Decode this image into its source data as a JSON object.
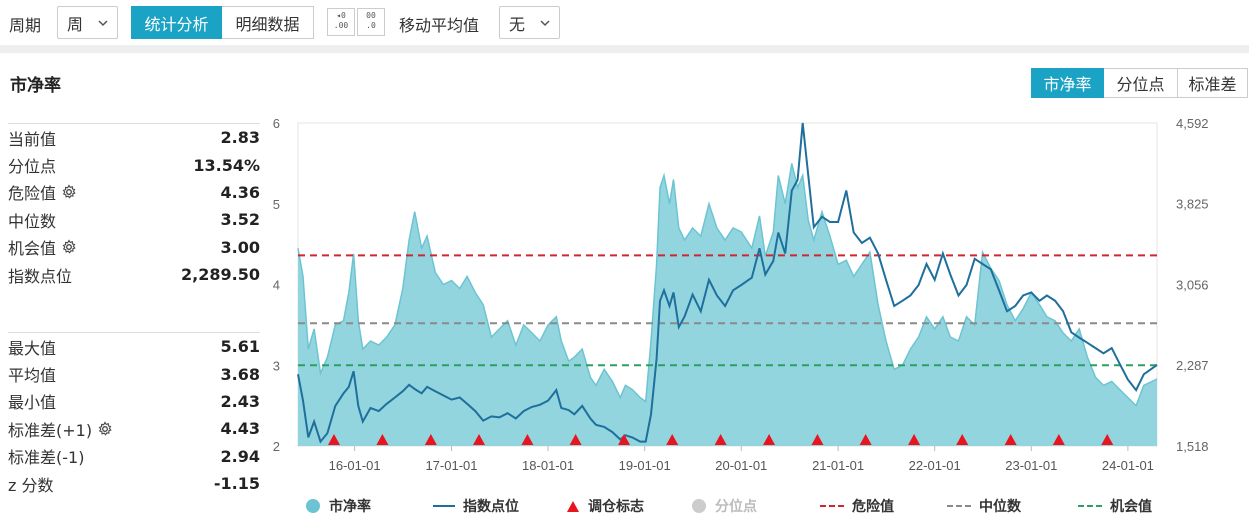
{
  "toolbar": {
    "period_label": "周期",
    "period_value": "周",
    "tab_stats": "统计分析",
    "tab_detail": "明细数据",
    "ma_label": "移动平均值",
    "ma_value": "无",
    "decimal_inc": ".00",
    "decimal_dec": ".0"
  },
  "section": {
    "title": "市净率",
    "view_tabs": [
      "市净率",
      "分位点",
      "标准差"
    ]
  },
  "stats_top": [
    {
      "label": "当前值",
      "value": "2.83",
      "gear": false
    },
    {
      "label": "分位点",
      "value": "13.54%",
      "gear": false
    },
    {
      "label": "危险值",
      "value": "4.36",
      "gear": true
    },
    {
      "label": "中位数",
      "value": "3.52",
      "gear": false
    },
    {
      "label": "机会值",
      "value": "3.00",
      "gear": true
    },
    {
      "label": "指数点位",
      "value": "2,289.50",
      "gear": false
    }
  ],
  "stats_bottom": [
    {
      "label": "最大值",
      "value": "5.61",
      "gear": false
    },
    {
      "label": "平均值",
      "value": "3.68",
      "gear": false
    },
    {
      "label": "最小值",
      "value": "2.43",
      "gear": false
    },
    {
      "label": "标准差(+1)",
      "value": "4.43",
      "gear": true
    },
    {
      "label": "标准差(-1)",
      "value": "2.94",
      "gear": false
    },
    {
      "label": "z 分数",
      "value": "-1.15",
      "gear": false
    }
  ],
  "colors": {
    "accent": "#1ba3c6",
    "area_fill": "#93d5df",
    "area_stroke": "#6cc4d2",
    "index_line": "#1f6f9c",
    "danger": "#d0262d",
    "median": "#8a8a8a",
    "opportunity": "#2aa061",
    "marker": "#e8141e"
  },
  "legend": [
    {
      "label": "市净率",
      "type": "circle",
      "color": "#6cc4d2",
      "active": true
    },
    {
      "label": "指数点位",
      "type": "line",
      "color": "#1f6f9c",
      "active": true
    },
    {
      "label": "调仓标志",
      "type": "triangle",
      "color": "#e8141e",
      "active": true
    },
    {
      "label": "分位点",
      "type": "circle",
      "color": "#cccccc",
      "active": false
    },
    {
      "label": "危险值",
      "type": "dash",
      "color": "#d0262d",
      "active": true
    },
    {
      "label": "中位数",
      "type": "dash",
      "color": "#8a8a8a",
      "active": true
    },
    {
      "label": "机会值",
      "type": "dash",
      "color": "#2aa061",
      "active": true
    }
  ],
  "chart_data": {
    "type": "area",
    "x_range": [
      "2015-06-01",
      "2024-04-20"
    ],
    "x_tick_labels": [
      "16-01-01",
      "17-01-01",
      "18-01-01",
      "19-01-01",
      "20-01-01",
      "21-01-01",
      "22-01-01",
      "23-01-01",
      "24-01-01"
    ],
    "x_tick_dates": [
      "2016-01-01",
      "2017-01-01",
      "2018-01-01",
      "2019-01-01",
      "2020-01-01",
      "2021-01-01",
      "2022-01-01",
      "2023-01-01",
      "2024-01-01"
    ],
    "y_left": {
      "ticks": [
        "2",
        "3",
        "4",
        "5",
        "6"
      ],
      "ylim": [
        2,
        6
      ]
    },
    "y_right": {
      "ticks": [
        "1,518",
        "2,287",
        "3,056",
        "3,825",
        "4,592"
      ],
      "ylim": [
        1518,
        4592
      ]
    },
    "reference_lines": [
      {
        "name": "危险值",
        "value": 4.36
      },
      {
        "name": "中位数",
        "value": 3.52
      },
      {
        "name": "机会值",
        "value": 3.0
      }
    ],
    "series": [
      {
        "name": "市净率",
        "axis": "left",
        "type": "area",
        "points": [
          [
            "2015-06-01",
            4.45
          ],
          [
            "2015-06-20",
            4.1
          ],
          [
            "2015-07-10",
            3.2
          ],
          [
            "2015-08-01",
            3.45
          ],
          [
            "2015-08-25",
            2.9
          ],
          [
            "2015-09-20",
            3.1
          ],
          [
            "2015-10-20",
            3.5
          ],
          [
            "2015-11-20",
            3.55
          ],
          [
            "2015-12-10",
            3.9
          ],
          [
            "2015-12-28",
            4.38
          ],
          [
            "2016-01-15",
            3.55
          ],
          [
            "2016-02-01",
            3.2
          ],
          [
            "2016-03-01",
            3.3
          ],
          [
            "2016-04-01",
            3.25
          ],
          [
            "2016-05-01",
            3.35
          ],
          [
            "2016-06-01",
            3.5
          ],
          [
            "2016-07-01",
            3.95
          ],
          [
            "2016-07-25",
            4.55
          ],
          [
            "2016-08-15",
            4.9
          ],
          [
            "2016-09-10",
            4.45
          ],
          [
            "2016-10-01",
            4.6
          ],
          [
            "2016-11-01",
            4.15
          ],
          [
            "2016-12-01",
            4.0
          ],
          [
            "2017-01-01",
            4.05
          ],
          [
            "2017-02-01",
            3.95
          ],
          [
            "2017-03-01",
            4.1
          ],
          [
            "2017-04-01",
            3.9
          ],
          [
            "2017-05-01",
            3.75
          ],
          [
            "2017-06-01",
            3.35
          ],
          [
            "2017-07-01",
            3.45
          ],
          [
            "2017-08-01",
            3.55
          ],
          [
            "2017-09-01",
            3.25
          ],
          [
            "2017-10-01",
            3.5
          ],
          [
            "2017-11-01",
            3.4
          ],
          [
            "2017-12-01",
            3.3
          ],
          [
            "2018-01-01",
            3.5
          ],
          [
            "2018-02-01",
            3.6
          ],
          [
            "2018-02-20",
            3.3
          ],
          [
            "2018-03-20",
            3.05
          ],
          [
            "2018-04-10",
            3.1
          ],
          [
            "2018-05-10",
            3.2
          ],
          [
            "2018-06-10",
            2.85
          ],
          [
            "2018-07-01",
            2.75
          ],
          [
            "2018-08-01",
            2.95
          ],
          [
            "2018-09-01",
            2.8
          ],
          [
            "2018-10-01",
            2.6
          ],
          [
            "2018-10-20",
            2.75
          ],
          [
            "2018-11-15",
            2.7
          ],
          [
            "2018-12-15",
            2.6
          ],
          [
            "2019-01-05",
            2.55
          ],
          [
            "2019-01-25",
            3.3
          ],
          [
            "2019-02-15",
            4.25
          ],
          [
            "2019-02-28",
            5.2
          ],
          [
            "2019-03-15",
            5.35
          ],
          [
            "2019-04-05",
            5.0
          ],
          [
            "2019-04-20",
            5.3
          ],
          [
            "2019-05-10",
            4.7
          ],
          [
            "2019-06-01",
            4.55
          ],
          [
            "2019-07-01",
            4.7
          ],
          [
            "2019-08-01",
            4.6
          ],
          [
            "2019-09-01",
            5.0
          ],
          [
            "2019-10-01",
            4.7
          ],
          [
            "2019-11-01",
            4.55
          ],
          [
            "2019-12-01",
            4.7
          ],
          [
            "2020-01-01",
            4.65
          ],
          [
            "2020-02-10",
            4.45
          ],
          [
            "2020-03-10",
            4.85
          ],
          [
            "2020-04-01",
            4.35
          ],
          [
            "2020-05-01",
            4.65
          ],
          [
            "2020-05-20",
            5.35
          ],
          [
            "2020-06-15",
            5.0
          ],
          [
            "2020-07-10",
            5.5
          ],
          [
            "2020-08-01",
            5.2
          ],
          [
            "2020-08-20",
            5.35
          ],
          [
            "2020-09-10",
            4.8
          ],
          [
            "2020-10-01",
            4.55
          ],
          [
            "2020-11-01",
            4.9
          ],
          [
            "2020-12-01",
            4.6
          ],
          [
            "2021-01-01",
            4.25
          ],
          [
            "2021-02-01",
            4.3
          ],
          [
            "2021-03-01",
            4.1
          ],
          [
            "2021-04-01",
            4.25
          ],
          [
            "2021-05-01",
            4.4
          ],
          [
            "2021-06-01",
            3.75
          ],
          [
            "2021-07-01",
            3.3
          ],
          [
            "2021-08-01",
            2.95
          ],
          [
            "2021-09-01",
            3.0
          ],
          [
            "2021-10-01",
            3.2
          ],
          [
            "2021-11-01",
            3.35
          ],
          [
            "2021-12-01",
            3.6
          ],
          [
            "2022-01-01",
            3.45
          ],
          [
            "2022-02-01",
            3.6
          ],
          [
            "2022-03-01",
            3.35
          ],
          [
            "2022-04-01",
            3.3
          ],
          [
            "2022-05-01",
            3.6
          ],
          [
            "2022-06-01",
            3.5
          ],
          [
            "2022-07-01",
            4.4
          ],
          [
            "2022-08-01",
            4.2
          ],
          [
            "2022-09-01",
            4.05
          ],
          [
            "2022-10-01",
            3.75
          ],
          [
            "2022-11-01",
            3.55
          ],
          [
            "2022-12-01",
            3.7
          ],
          [
            "2023-01-01",
            3.9
          ],
          [
            "2023-02-01",
            3.75
          ],
          [
            "2023-03-01",
            3.6
          ],
          [
            "2023-04-01",
            3.55
          ],
          [
            "2023-05-01",
            3.4
          ],
          [
            "2023-06-01",
            3.3
          ],
          [
            "2023-07-01",
            3.45
          ],
          [
            "2023-08-01",
            3.1
          ],
          [
            "2023-09-01",
            2.85
          ],
          [
            "2023-10-01",
            2.75
          ],
          [
            "2023-11-01",
            2.8
          ],
          [
            "2023-12-01",
            2.7
          ],
          [
            "2024-01-01",
            2.6
          ],
          [
            "2024-02-01",
            2.5
          ],
          [
            "2024-03-01",
            2.75
          ],
          [
            "2024-04-20",
            2.83
          ]
        ]
      },
      {
        "name": "指数点位",
        "axis": "right",
        "type": "line",
        "points": [
          [
            "2015-06-01",
            2200
          ],
          [
            "2015-06-20",
            1950
          ],
          [
            "2015-07-10",
            1600
          ],
          [
            "2015-08-01",
            1750
          ],
          [
            "2015-08-25",
            1560
          ],
          [
            "2015-09-20",
            1640
          ],
          [
            "2015-10-20",
            1900
          ],
          [
            "2015-11-20",
            2020
          ],
          [
            "2015-12-10",
            2080
          ],
          [
            "2015-12-28",
            2230
          ],
          [
            "2016-01-15",
            1900
          ],
          [
            "2016-02-01",
            1750
          ],
          [
            "2016-03-01",
            1880
          ],
          [
            "2016-04-01",
            1850
          ],
          [
            "2016-05-01",
            1920
          ],
          [
            "2016-06-01",
            1980
          ],
          [
            "2016-07-01",
            2040
          ],
          [
            "2016-07-25",
            2100
          ],
          [
            "2016-08-15",
            2060
          ],
          [
            "2016-09-10",
            2020
          ],
          [
            "2016-10-01",
            2080
          ],
          [
            "2016-11-01",
            2040
          ],
          [
            "2016-12-01",
            2000
          ],
          [
            "2017-01-01",
            1960
          ],
          [
            "2017-02-01",
            1980
          ],
          [
            "2017-03-01",
            1920
          ],
          [
            "2017-04-01",
            1850
          ],
          [
            "2017-05-01",
            1760
          ],
          [
            "2017-06-01",
            1800
          ],
          [
            "2017-07-01",
            1790
          ],
          [
            "2017-08-01",
            1830
          ],
          [
            "2017-09-01",
            1780
          ],
          [
            "2017-10-01",
            1850
          ],
          [
            "2017-11-01",
            1890
          ],
          [
            "2017-12-01",
            1910
          ],
          [
            "2018-01-01",
            1950
          ],
          [
            "2018-02-01",
            2050
          ],
          [
            "2018-02-20",
            1880
          ],
          [
            "2018-03-20",
            1860
          ],
          [
            "2018-04-10",
            1820
          ],
          [
            "2018-05-10",
            1900
          ],
          [
            "2018-06-10",
            1780
          ],
          [
            "2018-07-01",
            1720
          ],
          [
            "2018-08-01",
            1700
          ],
          [
            "2018-09-01",
            1650
          ],
          [
            "2018-10-01",
            1580
          ],
          [
            "2018-10-20",
            1620
          ],
          [
            "2018-11-15",
            1600
          ],
          [
            "2018-12-15",
            1560
          ],
          [
            "2019-01-05",
            1560
          ],
          [
            "2019-01-25",
            1820
          ],
          [
            "2019-02-15",
            2350
          ],
          [
            "2019-02-28",
            2900
          ],
          [
            "2019-03-15",
            3000
          ],
          [
            "2019-04-05",
            2850
          ],
          [
            "2019-04-20",
            2980
          ],
          [
            "2019-05-10",
            2650
          ],
          [
            "2019-06-01",
            2750
          ],
          [
            "2019-07-01",
            2960
          ],
          [
            "2019-08-01",
            2800
          ],
          [
            "2019-09-01",
            3100
          ],
          [
            "2019-10-01",
            2950
          ],
          [
            "2019-11-01",
            2850
          ],
          [
            "2019-12-01",
            3000
          ],
          [
            "2020-01-01",
            3050
          ],
          [
            "2020-02-10",
            3120
          ],
          [
            "2020-03-10",
            3400
          ],
          [
            "2020-04-01",
            3150
          ],
          [
            "2020-05-01",
            3280
          ],
          [
            "2020-05-20",
            3550
          ],
          [
            "2020-06-15",
            3350
          ],
          [
            "2020-07-10",
            3950
          ],
          [
            "2020-08-01",
            4050
          ],
          [
            "2020-08-20",
            4592
          ],
          [
            "2020-09-10",
            4100
          ],
          [
            "2020-10-01",
            3600
          ],
          [
            "2020-11-01",
            3700
          ],
          [
            "2020-12-01",
            3650
          ],
          [
            "2021-01-01",
            3650
          ],
          [
            "2021-02-01",
            3950
          ],
          [
            "2021-03-01",
            3550
          ],
          [
            "2021-04-01",
            3450
          ],
          [
            "2021-05-01",
            3500
          ],
          [
            "2021-06-01",
            3350
          ],
          [
            "2021-07-01",
            3100
          ],
          [
            "2021-08-01",
            2850
          ],
          [
            "2021-09-01",
            2900
          ],
          [
            "2021-10-01",
            2950
          ],
          [
            "2021-11-01",
            3050
          ],
          [
            "2021-12-01",
            3250
          ],
          [
            "2022-01-01",
            3100
          ],
          [
            "2022-02-01",
            3350
          ],
          [
            "2022-03-01",
            3150
          ],
          [
            "2022-04-01",
            2950
          ],
          [
            "2022-05-01",
            3050
          ],
          [
            "2022-06-01",
            3300
          ],
          [
            "2022-07-01",
            3250
          ],
          [
            "2022-08-01",
            3200
          ],
          [
            "2022-09-01",
            3000
          ],
          [
            "2022-10-01",
            2800
          ],
          [
            "2022-11-01",
            2850
          ],
          [
            "2022-12-01",
            2950
          ],
          [
            "2023-01-01",
            2980
          ],
          [
            "2023-02-01",
            2900
          ],
          [
            "2023-03-01",
            2950
          ],
          [
            "2023-04-01",
            2900
          ],
          [
            "2023-05-01",
            2800
          ],
          [
            "2023-06-01",
            2600
          ],
          [
            "2023-07-01",
            2550
          ],
          [
            "2023-08-01",
            2500
          ],
          [
            "2023-09-01",
            2450
          ],
          [
            "2023-10-01",
            2400
          ],
          [
            "2023-11-01",
            2450
          ],
          [
            "2023-12-01",
            2300
          ],
          [
            "2024-01-01",
            2150
          ],
          [
            "2024-02-01",
            2050
          ],
          [
            "2024-03-01",
            2200
          ],
          [
            "2024-04-20",
            2289.5
          ]
        ]
      }
    ],
    "rebalance_markers": [
      "2015-10-15",
      "2016-04-15",
      "2016-10-15",
      "2017-04-15",
      "2017-10-15",
      "2018-04-15",
      "2018-10-15",
      "2019-04-15",
      "2019-10-15",
      "2020-04-15",
      "2020-10-15",
      "2021-04-15",
      "2021-10-15",
      "2022-04-15",
      "2022-10-15",
      "2023-04-15",
      "2023-10-15"
    ]
  }
}
